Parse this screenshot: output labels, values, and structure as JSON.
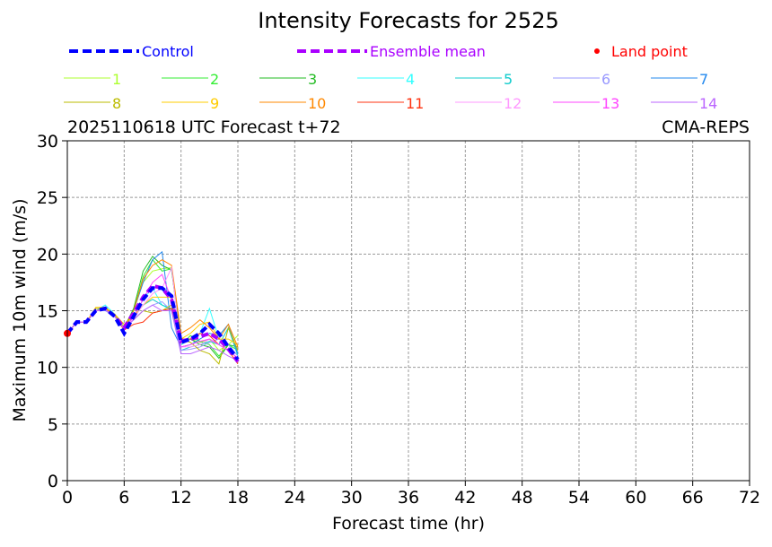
{
  "chart_data": {
    "type": "line",
    "title": "Intensity Forecasts for 2525",
    "subtitle_left": "2025110618 UTC Forecast t+72",
    "subtitle_right": "CMA-REPS",
    "xlabel": "Forecast time (hr)",
    "ylabel": "Maximum 10m wind (m/s)",
    "xlim": [
      0,
      72
    ],
    "ylim": [
      0,
      30
    ],
    "xticks": [
      0,
      6,
      12,
      18,
      24,
      30,
      36,
      42,
      48,
      54,
      60,
      66,
      72
    ],
    "yticks": [
      0,
      5,
      10,
      15,
      20,
      25,
      30
    ],
    "grid": true,
    "x": [
      0,
      1,
      2,
      3,
      4,
      5,
      6,
      7,
      8,
      9,
      10,
      11,
      12,
      13,
      14,
      15,
      16,
      17,
      18
    ],
    "control": {
      "name": "Control",
      "color": "#0000ff",
      "values": [
        13,
        14,
        14,
        15,
        15.2,
        14.5,
        13,
        14.5,
        16,
        17,
        17,
        16.3,
        12.2,
        12.5,
        13,
        13.8,
        13,
        11.8,
        10.7
      ]
    },
    "ensemble_mean": {
      "name": "Ensemble mean",
      "color": "#aa00ff",
      "values": [
        13,
        14,
        14,
        15,
        15.2,
        14.5,
        13.5,
        14.8,
        16.2,
        17.2,
        17,
        16,
        12.3,
        12.5,
        12.7,
        13,
        12.5,
        11.6,
        10.5
      ]
    },
    "land_point": {
      "name": "Land point",
      "color": "#ff0000",
      "points": [
        [
          0,
          13
        ]
      ]
    },
    "series": [
      {
        "name": "1",
        "color": "#adff2f",
        "values": [
          13,
          14,
          14,
          15,
          15.3,
          14.6,
          13.6,
          15,
          17.5,
          18.5,
          18.7,
          18.8,
          12,
          12.5,
          12.2,
          12.5,
          11.5,
          12,
          12.8
        ]
      },
      {
        "name": "2",
        "color": "#33ee33",
        "values": [
          13,
          14,
          14,
          15,
          15.2,
          14.5,
          13.5,
          15,
          18,
          19.5,
          18.5,
          18.7,
          12,
          12.8,
          12.3,
          12,
          11,
          12,
          11.5
        ]
      },
      {
        "name": "3",
        "color": "#22bb22",
        "values": [
          13,
          14,
          14,
          15,
          15.2,
          14.5,
          13.5,
          15.2,
          18.5,
          19.8,
          19,
          18.6,
          12.5,
          12.5,
          12,
          11.8,
          10.8,
          12,
          11.8
        ]
      },
      {
        "name": "4",
        "color": "#33ffff",
        "values": [
          13,
          14,
          14,
          15,
          15.5,
          14.7,
          13.5,
          14.5,
          16,
          17,
          15.5,
          15,
          12,
          12.5,
          13,
          15.2,
          12.5,
          12,
          11
        ]
      },
      {
        "name": "5",
        "color": "#11cccc",
        "values": [
          13,
          14,
          14,
          15,
          15.3,
          14.6,
          13.4,
          14.5,
          15.5,
          16,
          15.5,
          15.2,
          11.5,
          11.8,
          12,
          12.3,
          12,
          13.5,
          11
        ]
      },
      {
        "name": "6",
        "color": "#9999ff",
        "values": [
          13,
          14,
          14,
          15,
          15,
          14.5,
          13.5,
          14.2,
          15,
          15.5,
          15.8,
          15,
          11.5,
          11.6,
          11.8,
          12.2,
          12.5,
          12,
          11
        ]
      },
      {
        "name": "7",
        "color": "#2288ee",
        "values": [
          13,
          14,
          14,
          15,
          15.2,
          14.6,
          13.3,
          15,
          17.5,
          19.5,
          20.2,
          13.5,
          11.8,
          12,
          12.5,
          13,
          12.8,
          13.8,
          11.2
        ]
      },
      {
        "name": "8",
        "color": "#bbbb00",
        "values": [
          13,
          14,
          14,
          15.2,
          15.2,
          14.6,
          13.8,
          14.2,
          15,
          14.8,
          15,
          15.5,
          12.5,
          12.2,
          11.5,
          11.2,
          10.3,
          13.5,
          11.5
        ]
      },
      {
        "name": "9",
        "color": "#ffcc00",
        "values": [
          13,
          14,
          14,
          15.3,
          15.3,
          14.7,
          13.8,
          14.5,
          15.5,
          16.2,
          16.2,
          16.2,
          12.5,
          13,
          13.8,
          14,
          12.5,
          12.5,
          12
        ]
      },
      {
        "name": "10",
        "color": "#ff8800",
        "values": [
          13,
          14,
          14,
          15,
          15.2,
          14.5,
          13.5,
          15,
          17.8,
          19,
          19.5,
          19,
          13,
          13.5,
          14.2,
          13.5,
          12.5,
          13.8,
          11.8
        ]
      },
      {
        "name": "11",
        "color": "#ff3311",
        "values": [
          13,
          14,
          14,
          15,
          15.1,
          14.5,
          13.3,
          13.8,
          14,
          14.8,
          15,
          15.2,
          12.5,
          12.5,
          13,
          12.8,
          12,
          11.5,
          10.3
        ]
      },
      {
        "name": "12",
        "color": "#ff99ff",
        "values": [
          13,
          14,
          14,
          15,
          15.1,
          14.5,
          13.4,
          14.3,
          15.5,
          16.5,
          17,
          18.8,
          11.8,
          11.8,
          12,
          12.5,
          12,
          11.5,
          10.8
        ]
      },
      {
        "name": "13",
        "color": "#ff44ff",
        "values": [
          13,
          14,
          14,
          15,
          15.1,
          14.5,
          13.4,
          14.5,
          16,
          17.5,
          18.2,
          16,
          11.8,
          12,
          12.3,
          12.5,
          12,
          11.5,
          10.8
        ]
      },
      {
        "name": "14",
        "color": "#bb66ff",
        "values": [
          13,
          14,
          14,
          15,
          15.1,
          14.5,
          13.4,
          14.2,
          15,
          15.5,
          15,
          15,
          11.2,
          11.2,
          11.5,
          11.8,
          11.5,
          11,
          10.6
        ]
      }
    ]
  }
}
